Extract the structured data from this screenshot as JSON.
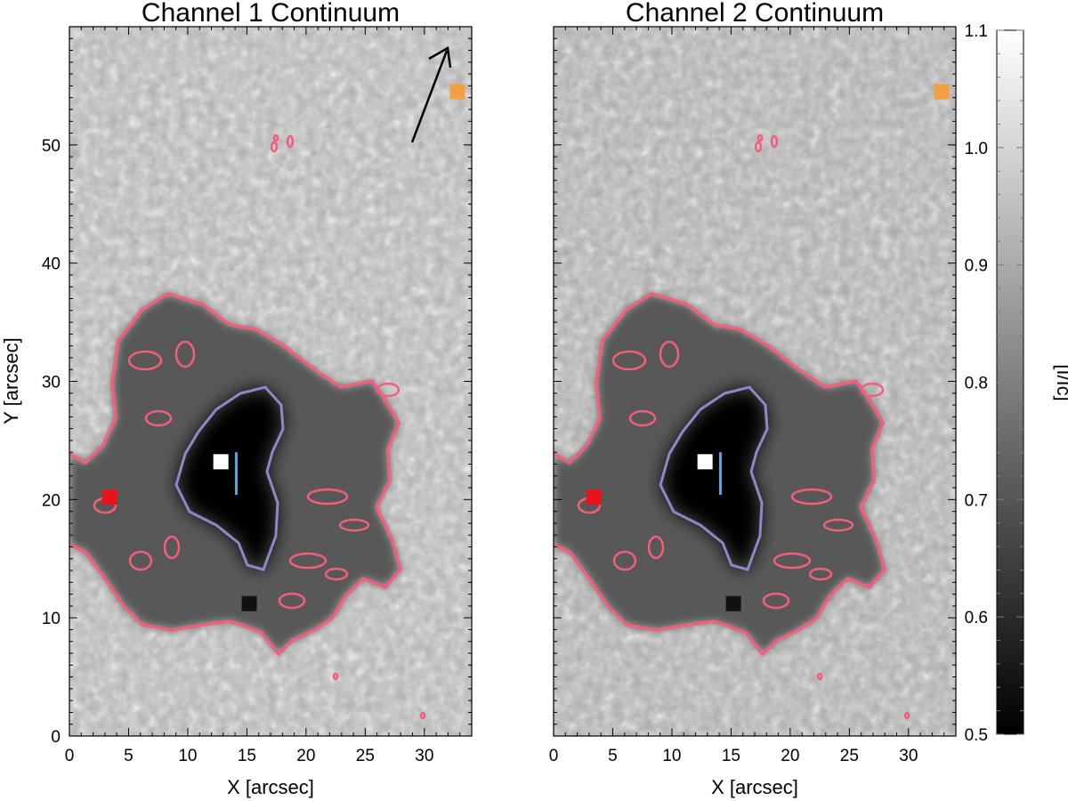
{
  "panels": [
    {
      "title": "Channel 1 Continuum",
      "xlabel": "X [arcsec]",
      "ylabel": "Y [arcsec]",
      "show_arrow": true
    },
    {
      "title": "Channel 2 Continuum",
      "xlabel": "X [arcsec]",
      "ylabel": "",
      "show_arrow": false
    }
  ],
  "x_ticks": [
    "0",
    "5",
    "10",
    "15",
    "20",
    "25",
    "30"
  ],
  "y_ticks": [
    "0",
    "10",
    "20",
    "30",
    "40",
    "50"
  ],
  "axes": {
    "x_range": [
      0,
      34
    ],
    "y_range": [
      0,
      60
    ]
  },
  "colorbar": {
    "label": "[I/Ic]",
    "range": [
      0.5,
      1.1
    ],
    "ticks": [
      "0.5",
      "0.6",
      "0.7",
      "0.8",
      "0.9",
      "1.0",
      "1.1"
    ]
  },
  "markers": [
    {
      "name": "umbra-marker",
      "color": "#ffffff",
      "x": 12.8,
      "y": 23.2
    },
    {
      "name": "penumbra-left-marker",
      "color": "#e8141c",
      "x": 3.4,
      "y": 20.2
    },
    {
      "name": "penumbra-bottom-marker",
      "color": "#111111",
      "x": 15.2,
      "y": 11.2
    },
    {
      "name": "quiet-sun-marker",
      "color": "#f5a040",
      "x": 32.8,
      "y": 54.5
    }
  ],
  "colors": {
    "penumbra_contour": "#f0607a",
    "umbra_contour": "#8a8ac8",
    "slit": "#5aa8e0",
    "background_quiet_sun": "#b8b8b8"
  }
}
